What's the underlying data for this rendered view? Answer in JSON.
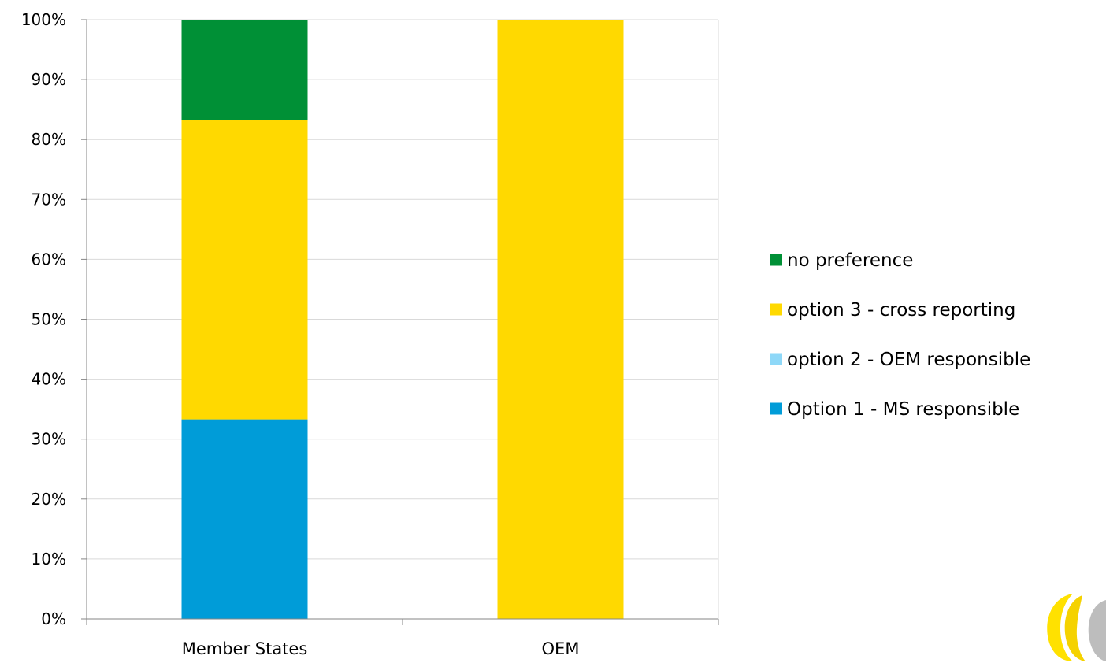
{
  "chart_data": {
    "type": "bar",
    "stacked": true,
    "percent_stacked": true,
    "categories": [
      "Member States",
      "OEM"
    ],
    "series": [
      {
        "name": "Option 1 - MS responsible",
        "values": [
          33.3,
          0
        ],
        "color": "#009CD8"
      },
      {
        "name": "option 2 - OEM responsible",
        "values": [
          0,
          0
        ],
        "color": "#8ED8F8"
      },
      {
        "name": "option 3 - cross reporting",
        "values": [
          50,
          100
        ],
        "color": "#FFD900"
      },
      {
        "name": "no preference",
        "values": [
          16.7,
          0
        ],
        "color": "#009036"
      }
    ],
    "legend_order": [
      "no preference",
      "option 3 - cross reporting",
      "option 2 - OEM responsible",
      "Option 1 - MS responsible"
    ],
    "ylim": [
      0,
      100
    ],
    "yticks": [
      "0%",
      "10%",
      "20%",
      "30%",
      "40%",
      "50%",
      "60%",
      "70%",
      "80%",
      "90%",
      "100%"
    ],
    "title": "",
    "xlabel": "",
    "ylabel": "",
    "grid": true,
    "legend_position": "right"
  },
  "colors": {
    "gridline": "#D9D9D9",
    "axis": "#868686",
    "logo_yellow": "#FFE100",
    "logo_gray": "#BDBDBD"
  },
  "icons": {
    "logo": "company-logo-icon"
  }
}
